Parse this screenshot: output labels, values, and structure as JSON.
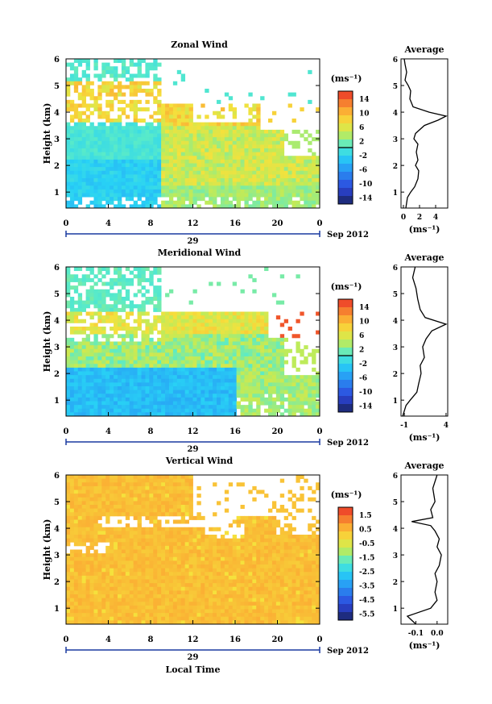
{
  "figure": {
    "x_axis_title": "Local Time",
    "date_label": "Sep 2012",
    "day_label": "29",
    "unit_label": "(ms⁻¹)",
    "avg_title": "Average"
  },
  "chart_data": [
    {
      "type": "heatmap",
      "title": "Zonal Wind",
      "ylabel": "Height (km)",
      "xlabel": "",
      "x_ticks": [
        "0",
        "4",
        "8",
        "12",
        "16",
        "20",
        "0"
      ],
      "xlim": [
        0,
        24
      ],
      "y_ticks": [
        "1",
        "2",
        "3",
        "4",
        "5",
        "6"
      ],
      "ylim": [
        0.4,
        6
      ],
      "colorbar": {
        "ticks": [
          "14",
          "10",
          "6",
          "2",
          "-2",
          "-6",
          "-10",
          "-14"
        ],
        "range": [
          -14,
          14
        ],
        "zero_line": 2
      },
      "profile": {
        "title": "Average",
        "xlabel": "(ms⁻¹)",
        "x_ticks": [
          "0",
          "2",
          "4"
        ],
        "xlim": [
          -0.3,
          5.5
        ],
        "heights": [
          0.4,
          0.8,
          1.0,
          1.2,
          1.5,
          1.8,
          2.0,
          2.2,
          2.5,
          2.8,
          3.0,
          3.2,
          3.5,
          3.7,
          3.85,
          4.0,
          4.2,
          4.5,
          4.8,
          5.0,
          5.2,
          5.5,
          5.8,
          6.0
        ],
        "values": [
          0.3,
          0.5,
          0.9,
          1.4,
          1.8,
          1.9,
          1.5,
          1.8,
          1.6,
          1.8,
          1.3,
          1.5,
          2.6,
          4.3,
          5.3,
          3.2,
          1.2,
          0.8,
          0.9,
          0.6,
          0.2,
          0.4,
          0.2,
          0.1
        ]
      }
    },
    {
      "type": "heatmap",
      "title": "Meridional Wind",
      "ylabel": "Height (km)",
      "xlabel": "",
      "x_ticks": [
        "0",
        "4",
        "8",
        "12",
        "16",
        "20",
        "0"
      ],
      "xlim": [
        0,
        24
      ],
      "y_ticks": [
        "1",
        "2",
        "3",
        "4",
        "5",
        "6"
      ],
      "ylim": [
        0.4,
        6
      ],
      "colorbar": {
        "ticks": [
          "14",
          "10",
          "6",
          "2",
          "-2",
          "-6",
          "-10",
          "-14"
        ],
        "range": [
          -14,
          14
        ],
        "zero_line": 2
      },
      "profile": {
        "title": "Average",
        "xlabel": "(ms⁻¹)",
        "x_ticks": [
          "-1",
          "4"
        ],
        "xlim": [
          -1.4,
          4.2
        ],
        "heights": [
          0.4,
          0.8,
          1.0,
          1.3,
          1.6,
          2.0,
          2.3,
          2.6,
          3.0,
          3.3,
          3.6,
          3.85,
          4.1,
          4.4,
          4.8,
          5.2,
          5.6,
          6.0
        ],
        "values": [
          -1.2,
          -0.8,
          -0.3,
          0.5,
          0.7,
          1.0,
          0.9,
          1.4,
          1.2,
          1.6,
          2.3,
          4.0,
          1.5,
          0.9,
          0.6,
          0.4,
          0.0,
          0.3
        ]
      }
    },
    {
      "type": "heatmap",
      "title": "Vertical Wind",
      "ylabel": "Height (km)",
      "xlabel": "Local Time",
      "x_ticks": [
        "0",
        "4",
        "8",
        "12",
        "16",
        "20",
        "0"
      ],
      "xlim": [
        0,
        24
      ],
      "y_ticks": [
        "1",
        "2",
        "3",
        "4",
        "5",
        "6"
      ],
      "ylim": [
        0.4,
        6
      ],
      "colorbar": {
        "ticks": [
          "1.5",
          "0.5",
          "-0.5",
          "-1.5",
          "-2.5",
          "-3.5",
          "-4.5",
          "-5.5"
        ],
        "range": [
          -6,
          2
        ]
      },
      "profile": {
        "title": "Average",
        "xlabel": "(ms⁻¹)",
        "x_ticks": [
          "-0.1",
          "0.0"
        ],
        "xlim": [
          -0.17,
          0.05
        ],
        "heights": [
          0.4,
          0.7,
          1.0,
          1.3,
          1.6,
          2.0,
          2.3,
          2.6,
          3.0,
          3.3,
          3.6,
          3.9,
          4.1,
          4.25,
          4.4,
          4.7,
          5.0,
          5.5,
          6.0
        ],
        "values": [
          -0.1,
          -0.14,
          -0.03,
          0.0,
          -0.01,
          0.0,
          -0.01,
          0.01,
          0.02,
          0.0,
          0.01,
          -0.01,
          -0.03,
          -0.12,
          -0.02,
          -0.03,
          -0.01,
          -0.02,
          0.0
        ]
      }
    }
  ]
}
